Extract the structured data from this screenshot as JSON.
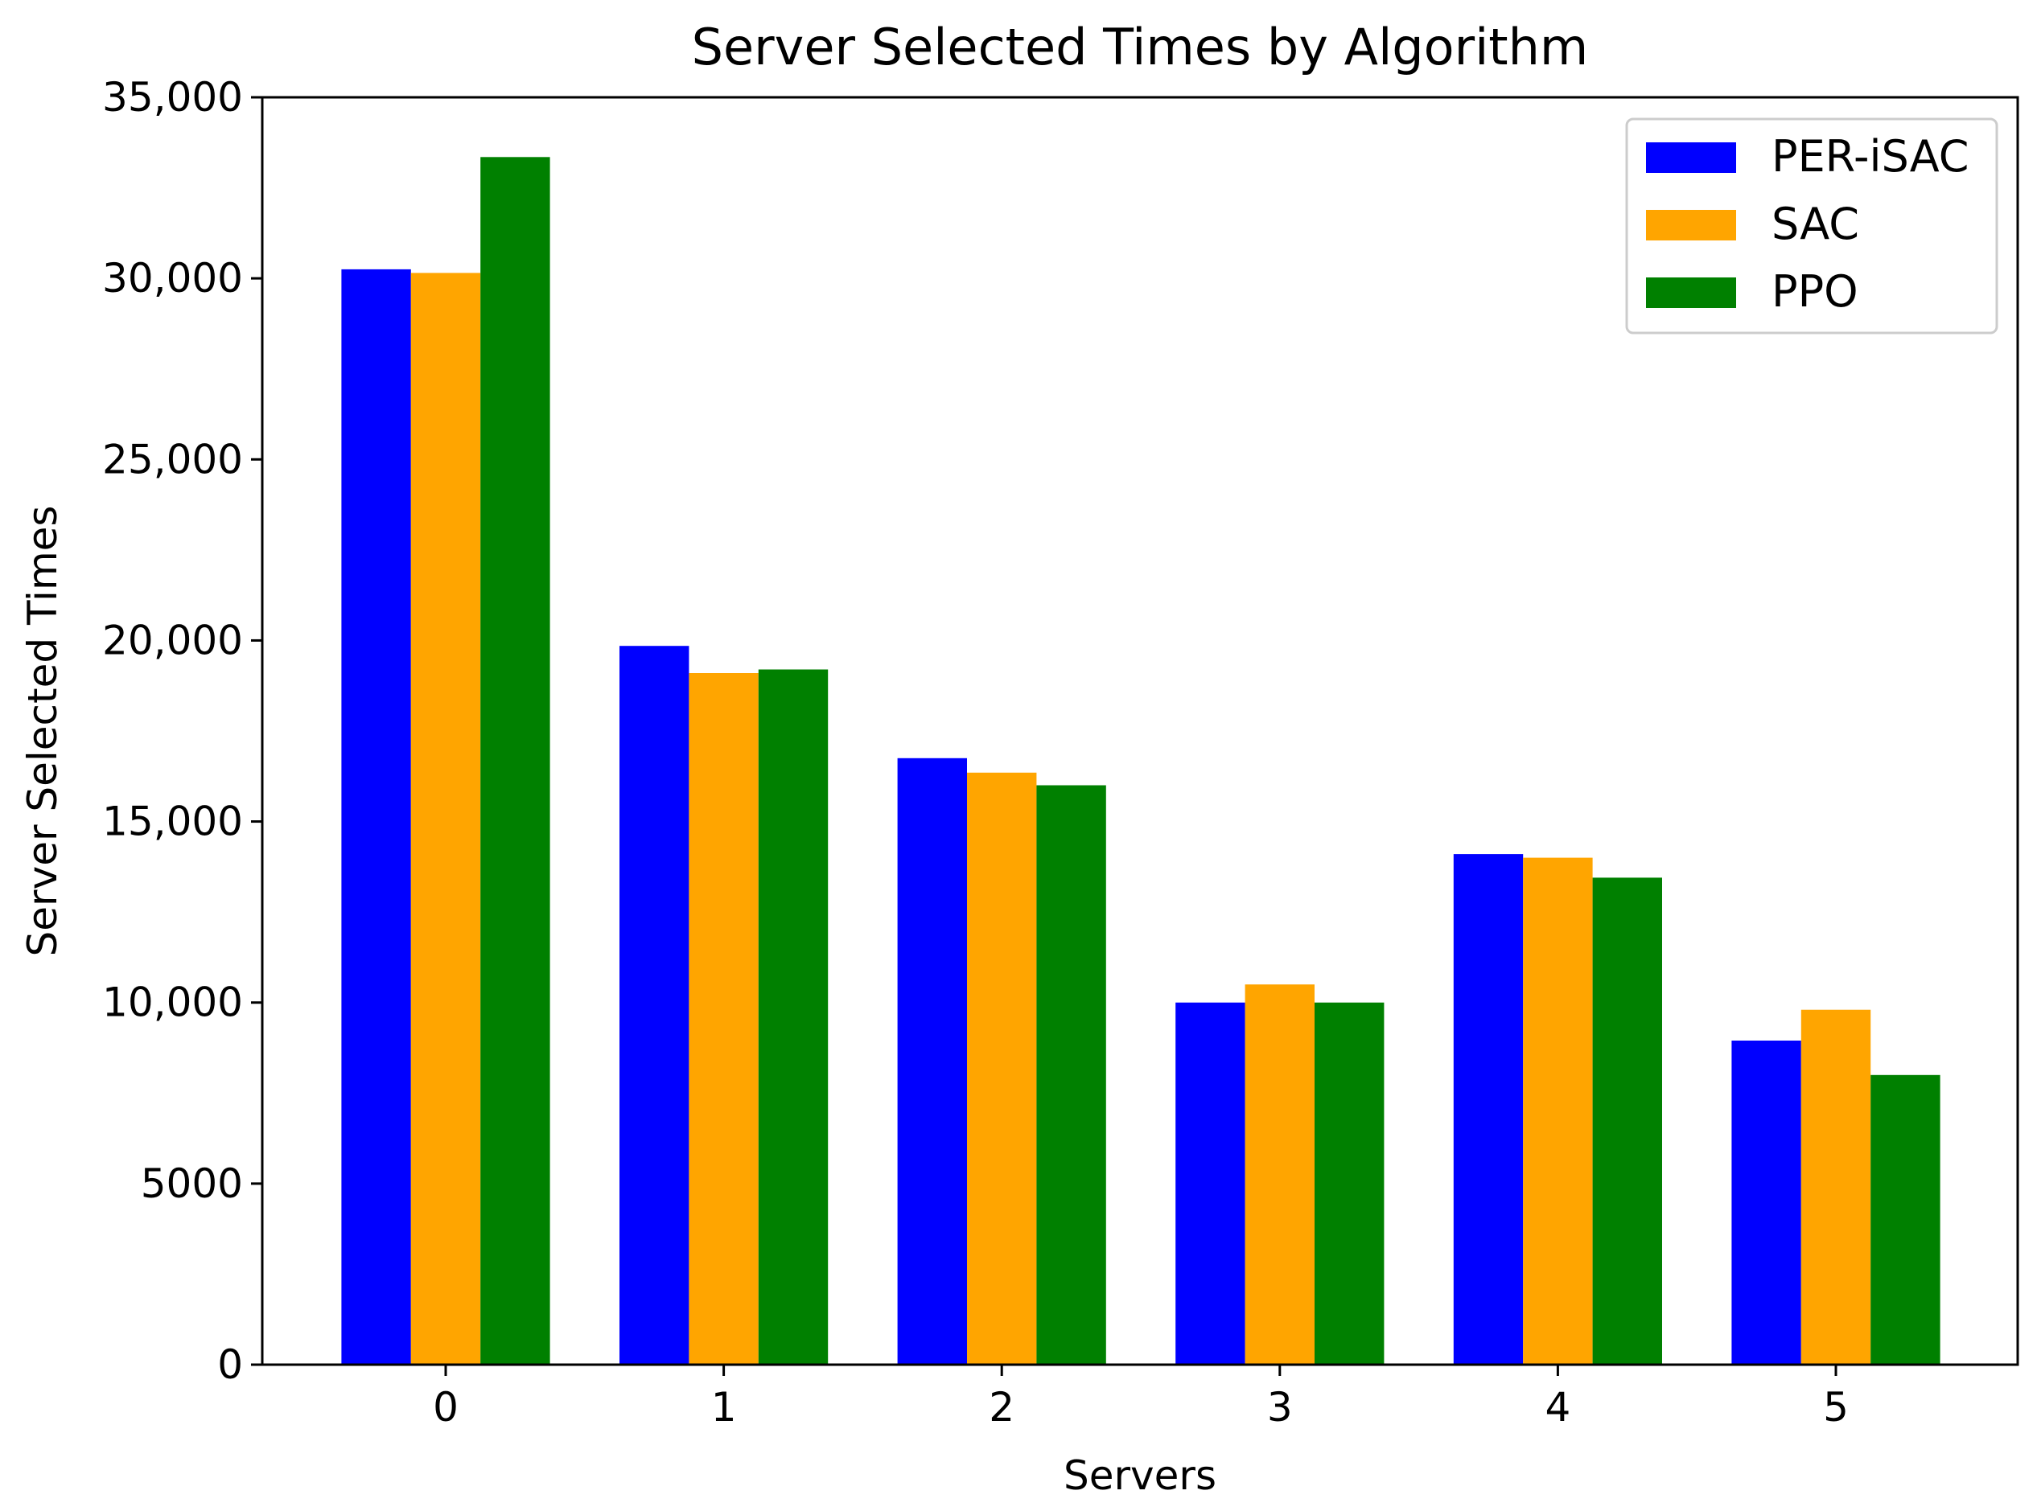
{
  "chart_data": {
    "type": "bar",
    "title": "Server Selected Times by Algorithm",
    "xlabel": "Servers",
    "ylabel": "Server Selected Times",
    "categories": [
      "0",
      "1",
      "2",
      "3",
      "4",
      "5"
    ],
    "ylim": [
      0,
      35000
    ],
    "yticks": [
      0,
      5000,
      10000,
      15000,
      20000,
      25000,
      30000,
      35000
    ],
    "ytick_labels": [
      "0",
      "5000",
      "10,000",
      "15,000",
      "20,000",
      "25,000",
      "30,000",
      "35,000"
    ],
    "grid": false,
    "legend_position": "top-right",
    "series": [
      {
        "name": "PER-iSAC",
        "color": "#0000ff",
        "values": [
          30250,
          19850,
          16750,
          10000,
          14100,
          8950
        ]
      },
      {
        "name": "SAC",
        "color": "#ffa500",
        "values": [
          30150,
          19100,
          16350,
          10500,
          14000,
          9800
        ]
      },
      {
        "name": "PPO",
        "color": "#008000",
        "values": [
          33350,
          19200,
          16000,
          10000,
          13450,
          8000
        ]
      }
    ]
  }
}
